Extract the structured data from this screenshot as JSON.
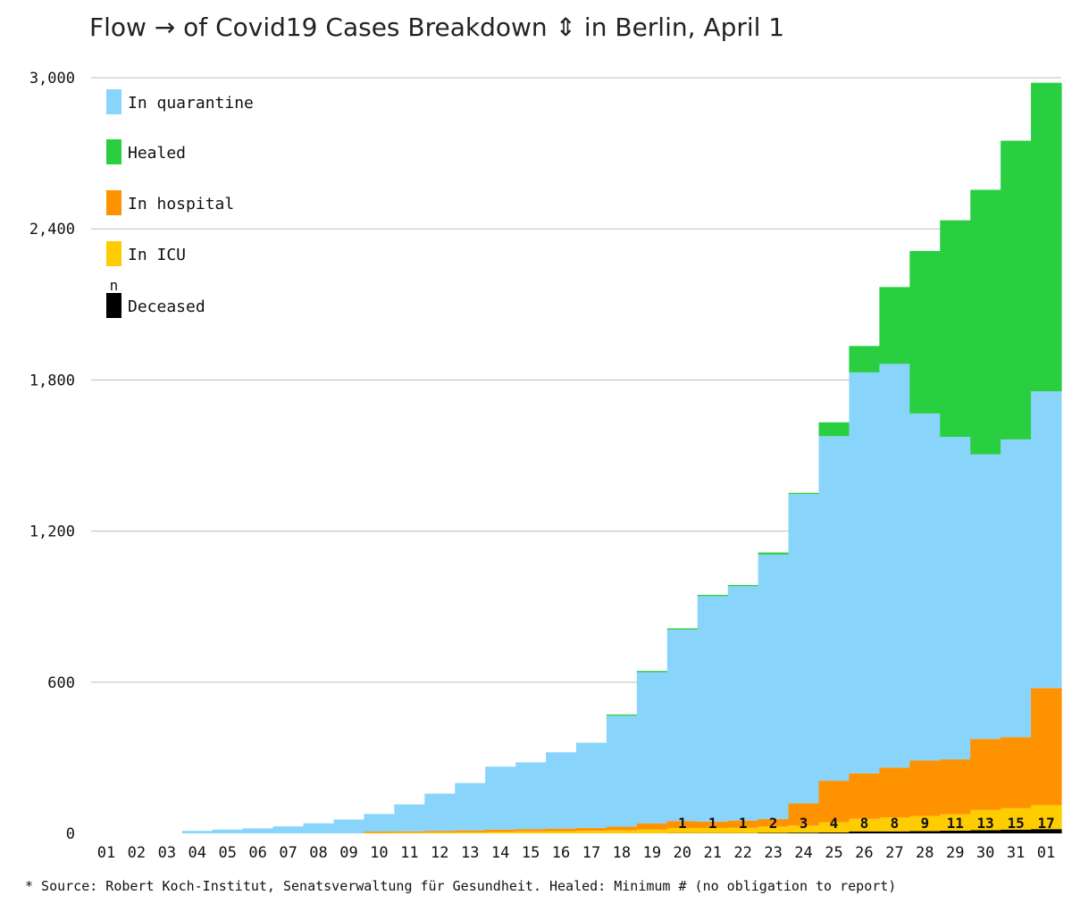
{
  "chart_data": {
    "type": "bar",
    "stacked": true,
    "title": "Flow → of Covid19 Cases Breakdown ⇕ in Berlin, April 1",
    "xlabel": "",
    "ylabel": "",
    "ylim": [
      0,
      3000
    ],
    "yticks": [
      0,
      600,
      1200,
      1800,
      2400,
      3000
    ],
    "ytick_labels": [
      "0",
      "600",
      "1,200",
      "1,800",
      "2,400",
      "3,000"
    ],
    "grid": true,
    "legend_placement": "top-left",
    "legend_deceased_marker": "n",
    "categories": [
      "01",
      "02",
      "03",
      "04",
      "05",
      "06",
      "07",
      "08",
      "09",
      "10",
      "11",
      "12",
      "13",
      "14",
      "15",
      "16",
      "17",
      "18",
      "19",
      "20",
      "21",
      "22",
      "23",
      "24",
      "25",
      "26",
      "27",
      "28",
      "29",
      "30",
      "31",
      "01"
    ],
    "series": [
      {
        "name": "Deceased",
        "color": "#000000",
        "values": [
          0,
          0,
          0,
          0,
          0,
          0,
          0,
          0,
          0,
          0,
          0,
          0,
          0,
          0,
          0,
          0,
          0,
          0,
          0,
          1,
          1,
          1,
          2,
          3,
          4,
          8,
          8,
          9,
          11,
          13,
          15,
          17
        ]
      },
      {
        "name": "In ICU",
        "color": "#ffcc00",
        "values": [
          0,
          0,
          0,
          0,
          0,
          0,
          0,
          0,
          0,
          2,
          3,
          4,
          5,
          7,
          8,
          9,
          10,
          12,
          15,
          20,
          20,
          22,
          25,
          28,
          40,
          50,
          55,
          60,
          65,
          80,
          85,
          95
        ]
      },
      {
        "name": "In hospital",
        "color": "#ff9200",
        "values": [
          0,
          0,
          0,
          0,
          0,
          0,
          0,
          0,
          0,
          5,
          5,
          6,
          7,
          8,
          9,
          10,
          12,
          15,
          25,
          28,
          26,
          28,
          30,
          88,
          165,
          180,
          198,
          220,
          218,
          282,
          282,
          465
        ]
      },
      {
        "name": "In quarantine",
        "color": "#88d4fa",
        "values": [
          0,
          0,
          0,
          10,
          15,
          20,
          28,
          40,
          55,
          70,
          107,
          148,
          188,
          250,
          265,
          303,
          338,
          440,
          600,
          760,
          895,
          930,
          1050,
          1228,
          1368,
          1592,
          1603,
          1378,
          1280,
          1130,
          1182,
          1178
        ]
      },
      {
        "name": "Healed",
        "color": "#2acf41",
        "values": [
          0,
          0,
          0,
          0,
          0,
          0,
          0,
          0,
          0,
          0,
          0,
          0,
          0,
          0,
          0,
          0,
          0,
          5,
          5,
          5,
          5,
          5,
          8,
          5,
          55,
          105,
          305,
          645,
          860,
          1050,
          1186,
          1225
        ]
      }
    ],
    "deceased_labels": [
      "",
      "",
      "",
      "",
      "",
      "",
      "",
      "",
      "",
      "",
      "",
      "",
      "",
      "",
      "",
      "",
      "",
      "",
      "",
      "1",
      "1",
      "1",
      "2",
      "3",
      "4",
      "8",
      "8",
      "9",
      "11",
      "13",
      "15",
      "17"
    ]
  },
  "footer": {
    "source": "* Source: Robert Koch-Institut, Senatsverwaltung für Gesundheit. Healed: Minimum # (no obligation to report)"
  }
}
